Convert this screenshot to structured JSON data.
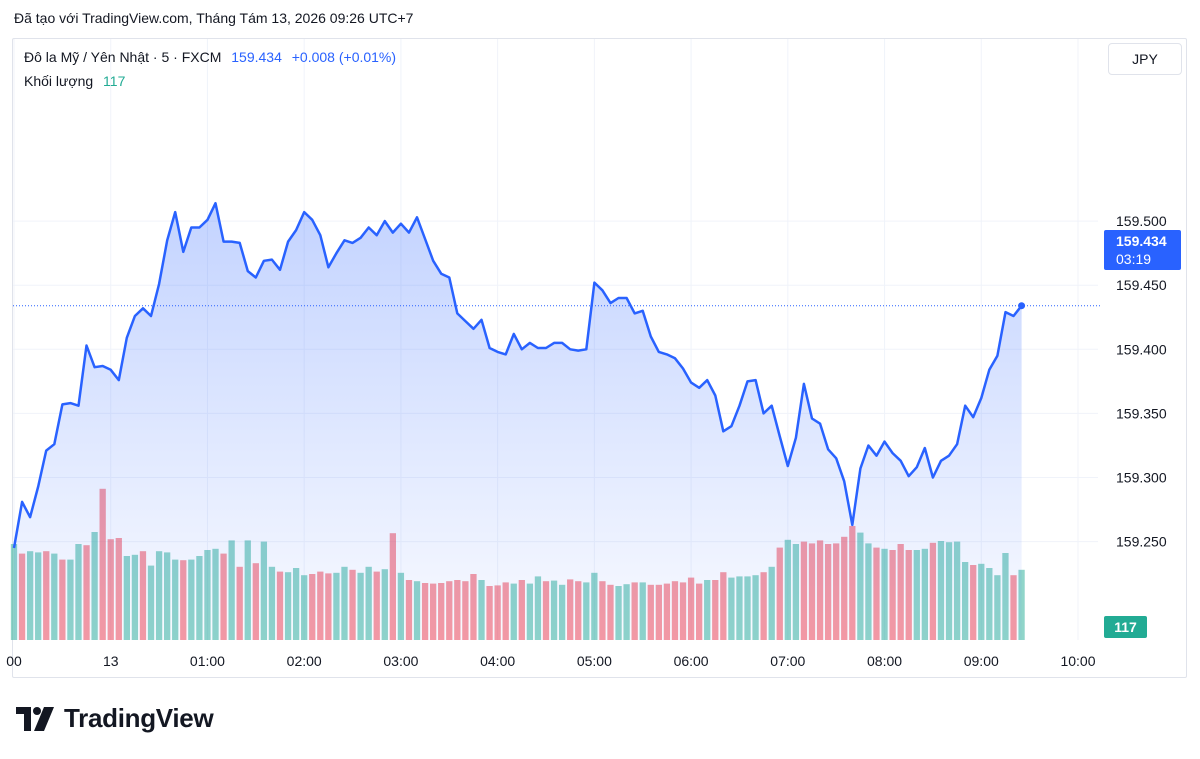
{
  "header": {
    "text": "Đã tạo với TradingView.com, Tháng Tám 13, 2026 09:26 UTC+7"
  },
  "legend": {
    "symbol": "Đô la Mỹ / Yên Nhật · 5 · FXCM",
    "price": "159.434",
    "change": "+0.008 (+0.01%)",
    "volume_label": "Khối lượng",
    "volume_value": "117"
  },
  "currency": "JPY",
  "price_badge": {
    "price": "159.434",
    "countdown": "03:19"
  },
  "volume_badge": "117",
  "logo": {
    "text": "TradingView"
  },
  "colors": {
    "line": "#2962ff",
    "up_volume": "#22ab94",
    "down_volume": "#f23645"
  },
  "chart_data": {
    "type": "area",
    "title": "",
    "xlabel": "",
    "ylabel": "",
    "y_ticks": [
      159.5,
      159.45,
      159.4,
      159.35,
      159.3,
      159.25
    ],
    "y_tick_labels": [
      "159.500",
      "159.450",
      "159.400",
      "159.350",
      "159.300",
      "159.250"
    ],
    "x_tick_labels": [
      {
        "t": 0,
        "label": "00"
      },
      {
        "t": 60,
        "label": "13"
      },
      {
        "t": 120,
        "label": "01:00"
      },
      {
        "t": 180,
        "label": "02:00"
      },
      {
        "t": 240,
        "label": "03:00"
      },
      {
        "t": 300,
        "label": "04:00"
      },
      {
        "t": 360,
        "label": "05:00"
      },
      {
        "t": 420,
        "label": "06:00"
      },
      {
        "t": 480,
        "label": "07:00"
      },
      {
        "t": 540,
        "label": "08:00"
      },
      {
        "t": 600,
        "label": "09:00"
      },
      {
        "t": 660,
        "label": "10:00"
      }
    ],
    "x_range_minutes": [
      0,
      675
    ],
    "y_range": [
      159.225,
      159.58
    ],
    "bar_interval_minutes": 5,
    "current_price": 159.434,
    "grid": true,
    "series": [
      {
        "name": "Đô la Mỹ / Yên Nhật",
        "values": [
          159.245,
          159.281,
          159.269,
          159.293,
          159.321,
          159.326,
          159.357,
          159.358,
          159.356,
          159.403,
          159.386,
          159.387,
          159.384,
          159.376,
          159.409,
          159.426,
          159.432,
          159.426,
          159.451,
          159.485,
          159.507,
          159.476,
          159.495,
          159.495,
          159.501,
          159.514,
          159.484,
          159.484,
          159.483,
          159.461,
          159.456,
          159.469,
          159.47,
          159.462,
          159.484,
          159.493,
          159.507,
          159.501,
          159.489,
          159.464,
          159.475,
          159.485,
          159.483,
          159.487,
          159.495,
          159.489,
          159.5,
          159.491,
          159.498,
          159.491,
          159.503,
          159.486,
          159.469,
          159.459,
          159.456,
          159.428,
          159.422,
          159.416,
          159.423,
          159.401,
          159.398,
          159.396,
          159.412,
          159.4,
          159.405,
          159.401,
          159.401,
          159.405,
          159.405,
          159.4,
          159.399,
          159.4,
          159.452,
          159.446,
          159.436,
          159.44,
          159.44,
          159.428,
          159.43,
          159.41,
          159.398,
          159.396,
          159.393,
          159.385,
          159.374,
          159.37,
          159.376,
          159.364,
          159.336,
          159.34,
          159.356,
          159.375,
          159.376,
          159.35,
          159.356,
          159.332,
          159.309,
          159.331,
          159.373,
          159.346,
          159.342,
          159.322,
          159.315,
          159.297,
          159.263,
          159.307,
          159.325,
          159.317,
          159.328,
          159.319,
          159.313,
          159.301,
          159.308,
          159.323,
          159.3,
          159.313,
          159.317,
          159.326,
          159.356,
          159.347,
          159.362,
          159.384,
          159.395,
          159.429,
          159.426,
          159.434
        ]
      }
    ],
    "volume": {
      "name": "Khối lượng",
      "values": [
        160,
        144,
        148,
        146,
        148,
        144,
        134,
        134,
        160,
        158,
        180,
        252,
        168,
        170,
        140,
        142,
        148,
        124,
        148,
        146,
        134,
        133,
        134,
        140,
        150,
        152,
        144,
        166,
        122,
        166,
        128,
        164,
        122,
        114,
        113,
        120,
        108,
        110,
        114,
        111,
        112,
        122,
        117,
        112,
        122,
        114,
        118,
        178,
        112,
        100,
        98,
        95,
        94,
        95,
        98,
        100,
        98,
        110,
        100,
        90,
        91,
        96,
        94,
        100,
        94,
        106,
        98,
        99,
        92,
        101,
        98,
        96,
        112,
        98,
        92,
        90,
        93,
        96,
        96,
        92,
        92,
        94,
        98,
        96,
        104,
        94,
        100,
        100,
        113,
        104,
        106,
        106,
        108,
        113,
        122,
        154,
        167,
        160,
        164,
        161,
        166,
        160,
        161,
        172,
        190,
        179,
        161,
        154,
        152,
        150,
        160,
        150,
        150,
        152,
        162,
        165,
        163,
        164,
        130,
        125,
        127,
        120,
        108,
        145,
        108,
        117
      ],
      "up": [
        1,
        0,
        1,
        1,
        0,
        1,
        0,
        1,
        1,
        0,
        1,
        0,
        0,
        0,
        1,
        1,
        0,
        1,
        1,
        1,
        1,
        0,
        1,
        1,
        1,
        1,
        0,
        1,
        0,
        1,
        0,
        1,
        1,
        0,
        1,
        1,
        1,
        0,
        0,
        0,
        1,
        1,
        0,
        1,
        1,
        0,
        1,
        0,
        1,
        0,
        1,
        0,
        0,
        0,
        0,
        0,
        0,
        0,
        1,
        0,
        0,
        0,
        1,
        0,
        1,
        1,
        0,
        1,
        1,
        0,
        0,
        1,
        1,
        0,
        0,
        1,
        1,
        0,
        1,
        0,
        0,
        0,
        0,
        0,
        0,
        0,
        1,
        0,
        0,
        1,
        1,
        1,
        1,
        0,
        1,
        0,
        1,
        1,
        0,
        0,
        0,
        0,
        0,
        0,
        0,
        1,
        1,
        0,
        1,
        0,
        0,
        0,
        1,
        1,
        0,
        1,
        1,
        1,
        1,
        0,
        1,
        1,
        1,
        1,
        0,
        1
      ]
    }
  }
}
